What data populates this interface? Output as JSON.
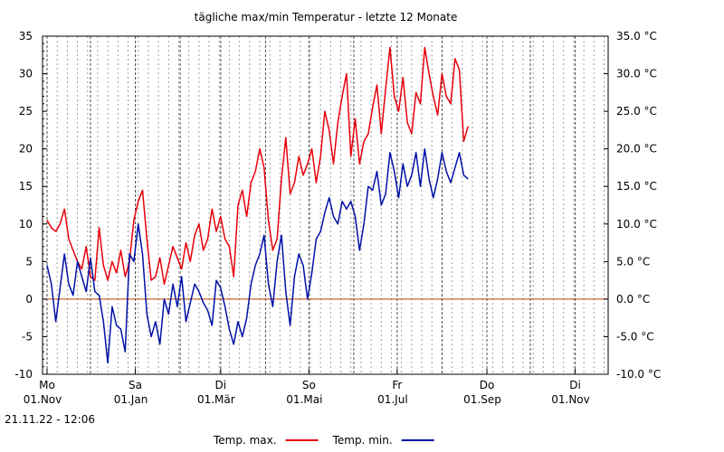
{
  "chart_data": {
    "type": "line",
    "title": "tägliche max/min Temperatur - letzte 12 Monate",
    "ylim": [
      -10,
      35
    ],
    "yticks_left": [
      "-10",
      "-5",
      "0",
      "5",
      "10",
      "15",
      "20",
      "25",
      "30",
      "35"
    ],
    "yticks_right": [
      "-10.0 °C",
      "-5.0 °C",
      "0.0 °C",
      "5.0 °C",
      "10.0 °C",
      "15.0 °C",
      "20.0 °C",
      "25.0 °C",
      "30.0 °C",
      "35.0 °C"
    ],
    "x_start_label_date": "2021-11-01",
    "x_major": [
      {
        "date": "2021-11-01",
        "weekday": "Mo",
        "date_label": "01.Nov"
      },
      {
        "date": "2022-01-01",
        "weekday": "Sa",
        "date_label": "01.Jan"
      },
      {
        "date": "2022-03-01",
        "weekday": "Di",
        "date_label": "01.Mär"
      },
      {
        "date": "2022-05-01",
        "weekday": "So",
        "date_label": "01.Mai"
      },
      {
        "date": "2022-07-01",
        "weekday": "Fr",
        "date_label": "01.Jul"
      },
      {
        "date": "2022-09-01",
        "weekday": "Do",
        "date_label": "01.Sep"
      },
      {
        "date": "2022-11-01",
        "weekday": "Di",
        "date_label": "01.Nov"
      }
    ],
    "x_axis_end": "2022-11-21",
    "timestamp": "21.11.22 - 12:06",
    "series": [
      {
        "name": "Temp. max.",
        "color": "#e8000a",
        "points": [
          [
            "2021-11-01",
            10.5
          ],
          [
            "2021-11-04",
            9.5
          ],
          [
            "2021-11-07",
            9.0
          ],
          [
            "2021-11-10",
            10.0
          ],
          [
            "2021-11-13",
            12.0
          ],
          [
            "2021-11-16",
            8.0
          ],
          [
            "2021-11-19",
            6.5
          ],
          [
            "2021-11-22",
            5.0
          ],
          [
            "2021-11-25",
            4.0
          ],
          [
            "2021-11-28",
            7.0
          ],
          [
            "2021-12-01",
            3.0
          ],
          [
            "2021-12-04",
            2.5
          ],
          [
            "2021-12-07",
            9.5
          ],
          [
            "2021-12-10",
            4.5
          ],
          [
            "2021-12-13",
            2.5
          ],
          [
            "2021-12-16",
            5.0
          ],
          [
            "2021-12-19",
            3.5
          ],
          [
            "2021-12-22",
            6.5
          ],
          [
            "2021-12-25",
            3.0
          ],
          [
            "2021-12-28",
            5.0
          ],
          [
            "2021-12-31",
            10.5
          ],
          [
            "2022-01-03",
            13.0
          ],
          [
            "2022-01-06",
            14.5
          ],
          [
            "2022-01-09",
            8.0
          ],
          [
            "2022-01-12",
            2.5
          ],
          [
            "2022-01-15",
            3.0
          ],
          [
            "2022-01-18",
            5.5
          ],
          [
            "2022-01-21",
            2.0
          ],
          [
            "2022-01-24",
            4.5
          ],
          [
            "2022-01-27",
            7.0
          ],
          [
            "2022-01-30",
            5.5
          ],
          [
            "2022-02-02",
            4.0
          ],
          [
            "2022-02-05",
            7.5
          ],
          [
            "2022-02-08",
            5.0
          ],
          [
            "2022-02-11",
            8.5
          ],
          [
            "2022-02-14",
            10.0
          ],
          [
            "2022-02-17",
            6.5
          ],
          [
            "2022-02-20",
            8.0
          ],
          [
            "2022-02-23",
            12.0
          ],
          [
            "2022-02-26",
            9.0
          ],
          [
            "2022-03-01",
            11.0
          ],
          [
            "2022-03-04",
            8.0
          ],
          [
            "2022-03-07",
            7.0
          ],
          [
            "2022-03-10",
            3.0
          ],
          [
            "2022-03-13",
            12.5
          ],
          [
            "2022-03-16",
            14.5
          ],
          [
            "2022-03-19",
            11.0
          ],
          [
            "2022-03-22",
            15.5
          ],
          [
            "2022-03-25",
            17.0
          ],
          [
            "2022-03-28",
            20.0
          ],
          [
            "2022-03-31",
            17.5
          ],
          [
            "2022-04-03",
            10.5
          ],
          [
            "2022-04-06",
            6.5
          ],
          [
            "2022-04-09",
            8.0
          ],
          [
            "2022-04-12",
            16.0
          ],
          [
            "2022-04-15",
            21.5
          ],
          [
            "2022-04-18",
            14.0
          ],
          [
            "2022-04-21",
            15.5
          ],
          [
            "2022-04-24",
            19.0
          ],
          [
            "2022-04-27",
            16.5
          ],
          [
            "2022-04-30",
            18.0
          ],
          [
            "2022-05-03",
            20.0
          ],
          [
            "2022-05-06",
            15.5
          ],
          [
            "2022-05-09",
            19.0
          ],
          [
            "2022-05-12",
            25.0
          ],
          [
            "2022-05-15",
            22.5
          ],
          [
            "2022-05-18",
            18.0
          ],
          [
            "2022-05-21",
            23.5
          ],
          [
            "2022-05-24",
            27.0
          ],
          [
            "2022-05-27",
            30.0
          ],
          [
            "2022-05-30",
            19.0
          ],
          [
            "2022-06-02",
            24.0
          ],
          [
            "2022-06-05",
            18.0
          ],
          [
            "2022-06-08",
            21.0
          ],
          [
            "2022-06-11",
            22.0
          ],
          [
            "2022-06-14",
            25.5
          ],
          [
            "2022-06-17",
            28.5
          ],
          [
            "2022-06-20",
            22.0
          ],
          [
            "2022-06-23",
            28.0
          ],
          [
            "2022-06-26",
            33.5
          ],
          [
            "2022-06-29",
            27.0
          ],
          [
            "2022-07-02",
            25.0
          ],
          [
            "2022-07-05",
            29.5
          ],
          [
            "2022-07-08",
            23.5
          ],
          [
            "2022-07-11",
            22.0
          ],
          [
            "2022-07-14",
            27.5
          ],
          [
            "2022-07-17",
            26.0
          ],
          [
            "2022-07-20",
            33.5
          ],
          [
            "2022-07-23",
            30.0
          ],
          [
            "2022-07-26",
            27.0
          ],
          [
            "2022-07-29",
            24.5
          ],
          [
            "2022-08-01",
            30.0
          ],
          [
            "2022-08-04",
            27.0
          ],
          [
            "2022-08-07",
            26.0
          ],
          [
            "2022-08-10",
            32.0
          ],
          [
            "2022-08-13",
            30.5
          ],
          [
            "2022-08-16",
            21.0
          ],
          [
            "2022-08-19",
            23.0
          ]
        ]
      },
      {
        "name": "Temp. min.",
        "color": "#0010a8",
        "points": [
          [
            "2021-11-01",
            4.5
          ],
          [
            "2021-11-04",
            2.0
          ],
          [
            "2021-11-07",
            -3.0
          ],
          [
            "2021-11-10",
            1.5
          ],
          [
            "2021-11-13",
            6.0
          ],
          [
            "2021-11-16",
            2.0
          ],
          [
            "2021-11-19",
            0.5
          ],
          [
            "2021-11-22",
            5.0
          ],
          [
            "2021-11-25",
            3.0
          ],
          [
            "2021-11-28",
            1.0
          ],
          [
            "2021-12-01",
            5.5
          ],
          [
            "2021-12-04",
            1.0
          ],
          [
            "2021-12-07",
            0.5
          ],
          [
            "2021-12-10",
            -3.0
          ],
          [
            "2021-12-13",
            -8.5
          ],
          [
            "2021-12-16",
            -1.0
          ],
          [
            "2021-12-19",
            -3.5
          ],
          [
            "2021-12-22",
            -4.0
          ],
          [
            "2021-12-25",
            -7.0
          ],
          [
            "2021-12-28",
            6.0
          ],
          [
            "2021-12-31",
            5.0
          ],
          [
            "2022-01-03",
            10.0
          ],
          [
            "2022-01-06",
            6.0
          ],
          [
            "2022-01-09",
            -2.0
          ],
          [
            "2022-01-12",
            -5.0
          ],
          [
            "2022-01-15",
            -3.0
          ],
          [
            "2022-01-18",
            -6.0
          ],
          [
            "2022-01-21",
            0.0
          ],
          [
            "2022-01-24",
            -2.0
          ],
          [
            "2022-01-27",
            2.0
          ],
          [
            "2022-01-30",
            -1.0
          ],
          [
            "2022-02-02",
            3.0
          ],
          [
            "2022-02-05",
            -3.0
          ],
          [
            "2022-02-08",
            -0.5
          ],
          [
            "2022-02-11",
            2.0
          ],
          [
            "2022-02-14",
            1.0
          ],
          [
            "2022-02-17",
            -0.5
          ],
          [
            "2022-02-20",
            -1.5
          ],
          [
            "2022-02-23",
            -3.5
          ],
          [
            "2022-02-26",
            2.5
          ],
          [
            "2022-03-01",
            1.5
          ],
          [
            "2022-03-04",
            -1.0
          ],
          [
            "2022-03-07",
            -4.0
          ],
          [
            "2022-03-10",
            -6.0
          ],
          [
            "2022-03-13",
            -3.0
          ],
          [
            "2022-03-16",
            -5.0
          ],
          [
            "2022-03-19",
            -2.5
          ],
          [
            "2022-03-22",
            2.0
          ],
          [
            "2022-03-25",
            4.5
          ],
          [
            "2022-03-28",
            6.0
          ],
          [
            "2022-03-31",
            8.5
          ],
          [
            "2022-04-03",
            2.0
          ],
          [
            "2022-04-06",
            -1.0
          ],
          [
            "2022-04-09",
            5.0
          ],
          [
            "2022-04-12",
            8.5
          ],
          [
            "2022-04-15",
            1.0
          ],
          [
            "2022-04-18",
            -3.5
          ],
          [
            "2022-04-21",
            3.0
          ],
          [
            "2022-04-24",
            6.0
          ],
          [
            "2022-04-27",
            4.5
          ],
          [
            "2022-04-30",
            0.0
          ],
          [
            "2022-05-03",
            3.5
          ],
          [
            "2022-05-06",
            8.0
          ],
          [
            "2022-05-09",
            9.0
          ],
          [
            "2022-05-12",
            11.5
          ],
          [
            "2022-05-15",
            13.5
          ],
          [
            "2022-05-18",
            11.0
          ],
          [
            "2022-05-21",
            10.0
          ],
          [
            "2022-05-24",
            13.0
          ],
          [
            "2022-05-27",
            12.0
          ],
          [
            "2022-05-30",
            13.0
          ],
          [
            "2022-06-02",
            11.0
          ],
          [
            "2022-06-05",
            6.5
          ],
          [
            "2022-06-08",
            10.0
          ],
          [
            "2022-06-11",
            15.0
          ],
          [
            "2022-06-14",
            14.5
          ],
          [
            "2022-06-17",
            17.0
          ],
          [
            "2022-06-20",
            12.5
          ],
          [
            "2022-06-23",
            14.0
          ],
          [
            "2022-06-26",
            19.5
          ],
          [
            "2022-06-29",
            17.0
          ],
          [
            "2022-07-02",
            13.5
          ],
          [
            "2022-07-05",
            18.0
          ],
          [
            "2022-07-08",
            15.0
          ],
          [
            "2022-07-11",
            16.5
          ],
          [
            "2022-07-14",
            19.5
          ],
          [
            "2022-07-17",
            15.0
          ],
          [
            "2022-07-20",
            20.0
          ],
          [
            "2022-07-23",
            16.0
          ],
          [
            "2022-07-26",
            13.5
          ],
          [
            "2022-07-29",
            16.0
          ],
          [
            "2022-08-01",
            19.5
          ],
          [
            "2022-08-04",
            17.0
          ],
          [
            "2022-08-07",
            15.5
          ],
          [
            "2022-08-10",
            17.5
          ],
          [
            "2022-08-13",
            19.5
          ],
          [
            "2022-08-16",
            16.5
          ],
          [
            "2022-08-19",
            16.0
          ]
        ]
      }
    ],
    "zero_line_color": "#c04000",
    "legend_position": "bottom"
  }
}
